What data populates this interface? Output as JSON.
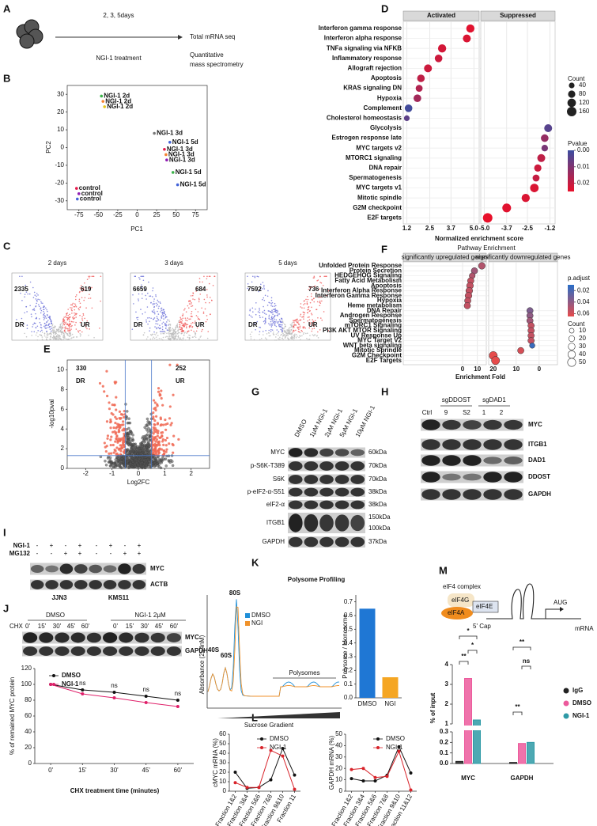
{
  "A": {
    "label": "A",
    "timing": "2, 3, 5days",
    "treatment": "NGI-1 treatment",
    "out1": "Total mRNA seq",
    "out2": "Quantitative",
    "out3": "mass spectrometry"
  },
  "B": {
    "label": "B",
    "type": "scatter",
    "xlabel": "PC1",
    "ylabel": "PC2",
    "xlim": [
      -90,
      90
    ],
    "ylim": [
      -35,
      35
    ],
    "xticks": [
      -75,
      -50,
      -25,
      0,
      25,
      50,
      75
    ],
    "yticks": [
      -30,
      -20,
      -10,
      0,
      10,
      20,
      30
    ],
    "points": [
      {
        "name": "NGI-1 2d",
        "x": -46,
        "y": 29,
        "color": "#3cb44b"
      },
      {
        "name": "NGI-1 2d",
        "x": -44,
        "y": 26,
        "color": "#f58231"
      },
      {
        "name": "NGI-1 2d",
        "x": -42,
        "y": 23,
        "color": "#e6c619"
      },
      {
        "name": "NGI-1 3d",
        "x": 22,
        "y": 8,
        "color": "#777777"
      },
      {
        "name": "NGI-1 5d",
        "x": 42,
        "y": 3,
        "color": "#4363d8"
      },
      {
        "name": "NGI-1 3d",
        "x": 35,
        "y": -1,
        "color": "#e6194b"
      },
      {
        "name": "NGI-1 3d",
        "x": 37,
        "y": -4,
        "color": "#f58231"
      },
      {
        "name": "NGI-1 3d",
        "x": 38,
        "y": -7,
        "color": "#911eb4"
      },
      {
        "name": "NGI-1 5d",
        "x": 46,
        "y": -14,
        "color": "#3cb44b"
      },
      {
        "name": "NGI-1 5d",
        "x": 52,
        "y": -21,
        "color": "#4363d8"
      },
      {
        "name": "control",
        "x": -78,
        "y": -23,
        "color": "#e6194b"
      },
      {
        "name": "control",
        "x": -75,
        "y": -26,
        "color": "#911eb4"
      },
      {
        "name": "control",
        "x": -77,
        "y": -29,
        "color": "#4363d8"
      }
    ]
  },
  "C": {
    "label": "C",
    "dr": "DR",
    "ur": "UR",
    "plots": [
      {
        "title": "2 days",
        "down": 2335,
        "up": 619
      },
      {
        "title": "3 days",
        "down": 6659,
        "up": 684
      },
      {
        "title": "5 days",
        "down": 7592,
        "up": 736
      }
    ]
  },
  "D": {
    "label": "D",
    "type": "dot",
    "xlabel": "Normalized enrichment score",
    "size_title": "Count",
    "color_title": "Pvalue",
    "size_legend": [
      40,
      80,
      120,
      160
    ],
    "plim": [
      0,
      0.025
    ],
    "pticks": [
      {
        "value": 0,
        "label": "0.00"
      },
      0.01,
      0.02
    ],
    "facets": [
      {
        "header": "Activated",
        "xlim": [
          1.0,
          5.3
        ],
        "xticks": [
          1.2,
          2.5,
          3.7,
          {
            "value": 5,
            "label": "5.0"
          }
        ],
        "categories": [
          "Interferon gamma response",
          "Interferon alpha response",
          "TNFa signaling via NFKB",
          "Inflammatory response",
          "Allograft rejection",
          "Apoptosis",
          "KRAS signaling DN",
          "Hypoxia",
          "Complement",
          "Cholesterol homeostasis"
        ],
        "values": [
          4.8,
          4.6,
          3.2,
          3.0,
          2.4,
          2.0,
          1.9,
          1.8,
          1.3,
          1.2
        ],
        "counts": [
          110,
          100,
          110,
          90,
          100,
          90,
          70,
          90,
          90,
          40
        ],
        "pvalues": [
          0.001,
          0.002,
          0.003,
          0.004,
          0.004,
          0.006,
          0.008,
          0.01,
          0.024,
          0.02
        ]
      },
      {
        "header": "Suppressed",
        "xlim": [
          -5.2,
          -0.9
        ],
        "xticks": [
          {
            "value": -5,
            "label": "-5.0"
          },
          -3.7,
          -2.5,
          -1.2
        ],
        "categories": [
          "Glycolysis",
          "Estrogen response late",
          "MYC targets v2",
          "MTORC1 signaling",
          "DNA repair",
          "Spermatogenesis",
          "MYC targets v1",
          "Mitotic spindle",
          "G2M checkpoint",
          "E2F targets"
        ],
        "values": [
          -1.3,
          -1.5,
          -1.5,
          -1.7,
          -1.9,
          -2.0,
          -2.1,
          -2.6,
          -3.7,
          -4.8
        ],
        "counts": [
          100,
          90,
          60,
          100,
          80,
          70,
          120,
          110,
          130,
          160
        ],
        "pvalues": [
          0.021,
          0.012,
          0.016,
          0.006,
          0.004,
          0.005,
          0.002,
          0.002,
          0.001,
          0.0
        ]
      }
    ]
  },
  "E": {
    "label": "E",
    "type": "volcano",
    "down": 330,
    "up": 252,
    "dr": "DR",
    "ur": "UR",
    "xlabel": "Log2FC",
    "ylabel": "-log10pval",
    "xlim": [
      -2.7,
      2.7
    ],
    "ylim": [
      0,
      11
    ],
    "xticks": [
      -2,
      -1,
      0,
      1,
      2
    ],
    "yticks": [
      0,
      2,
      4,
      6,
      8,
      10
    ],
    "fc_cut": [
      -0.5,
      0.5
    ],
    "p_cut": 1.3
  },
  "F": {
    "label": "F",
    "type": "dot",
    "title": "Pathway Enrichment",
    "xlabel": "Enrichment Fold",
    "size_title": "Count",
    "color_title": "p.adjust",
    "size_legend": [
      10,
      20,
      30,
      40,
      50
    ],
    "plim": [
      0.01,
      0.065
    ],
    "pticks": [
      0.02,
      0.04,
      0.06
    ],
    "facets": [
      {
        "header": "significantly upregulated genes",
        "xlim": [
          -40,
          16
        ],
        "xticks": [
          0,
          10
        ],
        "categories": [
          "Unfolded Protein Response",
          "Protein Secretion",
          "HEDGEHOG Signaling",
          "Fatty Acid Metabolism",
          "Apoptosis",
          "Interferon Alpha Response",
          "Interferon Gamma Response",
          "Hypoxia",
          "Heme metabolism"
        ],
        "values": [
          13,
          8,
          6.5,
          5.5,
          5,
          4.5,
          4,
          3.5,
          3.2
        ],
        "counts": [
          30,
          25,
          20,
          25,
          30,
          30,
          30,
          25,
          25
        ],
        "pvalues": [
          0.025,
          0.03,
          0.025,
          0.02,
          0.02,
          0.02,
          0.02,
          0.02,
          0.02
        ]
      },
      {
        "header": "significantly downregulated genes",
        "xlim": [
          22,
          -8
        ],
        "xticks": [
          20,
          10,
          0
        ],
        "categories": [
          "DNA Repair",
          "Androgen Response",
          "Spermatogenesis",
          "mTORC1 Signaling",
          "PI3K AKT MTOR Signaling",
          "UV Response Up",
          "MYC Target V2",
          "WNT beta signaling",
          "Mitotic Sprindle",
          "G2M Checkpoint",
          "E2F Targets"
        ],
        "values": [
          4,
          4,
          4,
          3.5,
          3.5,
          3.5,
          3.5,
          3,
          8,
          20,
          19
        ],
        "counts": [
          25,
          25,
          25,
          25,
          25,
          25,
          25,
          15,
          25,
          50,
          50
        ],
        "pvalues": [
          0.04,
          0.035,
          0.03,
          0.02,
          0.02,
          0.02,
          0.02,
          0.06,
          0.015,
          0.01,
          0.01
        ]
      }
    ]
  },
  "G": {
    "label": "G",
    "lanes": [
      "DMSO",
      "1μM NGI-1",
      "2μM NGI-1",
      "5μM NGI-1",
      "10μM NGI-1"
    ],
    "rows": [
      {
        "name": "MYC",
        "size": "60kDa"
      },
      {
        "name": "p-S6K-T389",
        "size": "70kDa"
      },
      {
        "name": "S6K",
        "size": "70kDa"
      },
      {
        "name": "p-eIF2-α-S51",
        "size": "38kDa"
      },
      {
        "name": "eIF2-α",
        "size": "38kDa"
      },
      {
        "name": "ITGB1",
        "size": "150kDa",
        "size2": "100kDa"
      },
      {
        "name": "GAPDH",
        "size": "37kDa"
      }
    ]
  },
  "H": {
    "label": "H",
    "ctrl": "Ctrl",
    "groups": [
      {
        "name": "sgDDOST",
        "lanes": [
          "9",
          "S2"
        ]
      },
      {
        "name": "sgDAD1",
        "lanes": [
          "1",
          "2"
        ]
      }
    ],
    "rows": [
      "MYC",
      "ITGB1",
      "DAD1",
      "DDOST",
      "GAPDH"
    ]
  },
  "I": {
    "label": "I",
    "treat1": "NGI-1",
    "treat2": "MG132",
    "signs1": [
      "-",
      "+",
      "-",
      "+",
      "-",
      "+",
      "-",
      "+"
    ],
    "signs2": [
      "-",
      "-",
      "+",
      "+",
      "-",
      "-",
      "+",
      "+"
    ],
    "rows": [
      "MYC",
      "ACTB"
    ],
    "lines": [
      "JJN3",
      "KMS11"
    ]
  },
  "J": {
    "label": "J",
    "type": "line",
    "groups": [
      "DMSO",
      "NGI-1 2μM"
    ],
    "chx": "CHX",
    "times": [
      "0'",
      "15'",
      "30'",
      "45'",
      "60'"
    ],
    "rows": [
      "MYC",
      "GAPDH"
    ],
    "ylabel": "% of remained MYC protein",
    "xlabel": "CHX treatment time (minutes)",
    "ylim": [
      0,
      120
    ],
    "yticks": [
      0,
      20,
      40,
      60,
      80,
      100,
      120
    ],
    "categories": [
      "0'",
      "15'",
      "30'",
      "45'",
      "60'"
    ],
    "series": [
      {
        "name": "DMSO",
        "color": "#111111",
        "values": [
          100,
          93,
          90,
          85,
          80
        ]
      },
      {
        "name": "NGI-1",
        "color": "#e0206a",
        "values": [
          100,
          88,
          83,
          77,
          72
        ]
      }
    ],
    "significance": [
      "ns",
      "ns",
      "ns",
      "ns"
    ]
  },
  "K": {
    "label": "K",
    "title": "Polysome Profiling",
    "peaks": [
      "40S",
      "60S",
      "80S"
    ],
    "polysomes": "Polysomes",
    "ylabel": "Absorbance (254nM)",
    "xlabel": "Sucrose Gradient",
    "legend": [
      {
        "name": "DMSO",
        "color": "#1f8fd8"
      },
      {
        "name": "NGI",
        "color": "#f0922b"
      }
    ],
    "bar": {
      "type": "bar",
      "ylabel": "Polysome / Monosome",
      "categories": [
        "DMSO",
        "NGI"
      ],
      "values": [
        0.65,
        0.15
      ],
      "colors": [
        "#1f77d4",
        "#f5a623"
      ],
      "ylim": [
        0,
        0.75
      ],
      "yticks": [
        {
          "value": 0,
          "label": "0.0"
        },
        0.1,
        0.2,
        0.3,
        0.4,
        0.5,
        0.6,
        0.7
      ]
    }
  },
  "L": {
    "label": "L",
    "charts": [
      {
        "type": "line",
        "ylabel": "cMYC mRNA (%)",
        "categories": [
          "Fraction 1&2",
          "Fraction 3&4",
          "Fraction 5&6",
          "Fraction 7&8",
          "Fraction 9&10",
          "Fraction 11"
        ],
        "ylim": [
          0,
          60
        ],
        "yticks": [
          0,
          10,
          20,
          30,
          40,
          50,
          60
        ],
        "series": [
          {
            "name": "DMSO",
            "color": "#111111",
            "values": [
              20,
              3,
              4,
              12,
              45,
              17
            ]
          },
          {
            "name": "NGI-1",
            "color": "#d8232a",
            "values": [
              9,
              4,
              4,
              43,
              37,
              2
            ]
          }
        ]
      },
      {
        "type": "line",
        "ylabel": "GAPDH mRNA (%)",
        "categories": [
          "Fraction 1&2",
          "Fraction 3&4",
          "Fraction 5&6",
          "Fraction 7&8",
          "Fraction 9&10",
          "Fraction 11&12"
        ],
        "ylim": [
          0,
          50
        ],
        "yticks": [
          0,
          10,
          20,
          30,
          40,
          50
        ],
        "series": [
          {
            "name": "DMSO",
            "color": "#111111",
            "values": [
              11,
              9,
              9,
              14,
              39,
              16
            ]
          },
          {
            "name": "NGI-1",
            "color": "#d8232a",
            "values": [
              19,
              20,
              12,
              13,
              35,
              1
            ]
          }
        ]
      }
    ]
  },
  "M": {
    "label": "M",
    "complex": "eIF4 complex",
    "g": "eIF4G",
    "a": "eIF4A",
    "e": "eIF4E",
    "cap": "5' Cap",
    "aug": "AUG",
    "mrna": "mRNA",
    "chart": {
      "type": "bar",
      "ylabel": "% of input",
      "categories": [
        "MYC",
        "GAPDH"
      ],
      "ylim": [
        [
          0,
          0.3
        ],
        [
          1,
          4
        ]
      ],
      "yticks": [
        [
          {
            "value": 0,
            "label": "0.0"
          },
          0.1,
          0.2,
          0.3
        ],
        [
          1,
          2,
          3,
          4
        ]
      ],
      "series": [
        {
          "name": "IgG",
          "color": "#222222",
          "values": [
            0.02,
            0.01
          ]
        },
        {
          "name": "DMSO",
          "color": "#ec5a9c",
          "values": [
            3.3,
            0.19
          ]
        },
        {
          "name": "NGI-1",
          "color": "#2e9aa6",
          "values": [
            1.2,
            0.2
          ]
        }
      ],
      "significance": [
        "*",
        "*",
        "**",
        "**",
        "ns",
        "**"
      ]
    }
  }
}
